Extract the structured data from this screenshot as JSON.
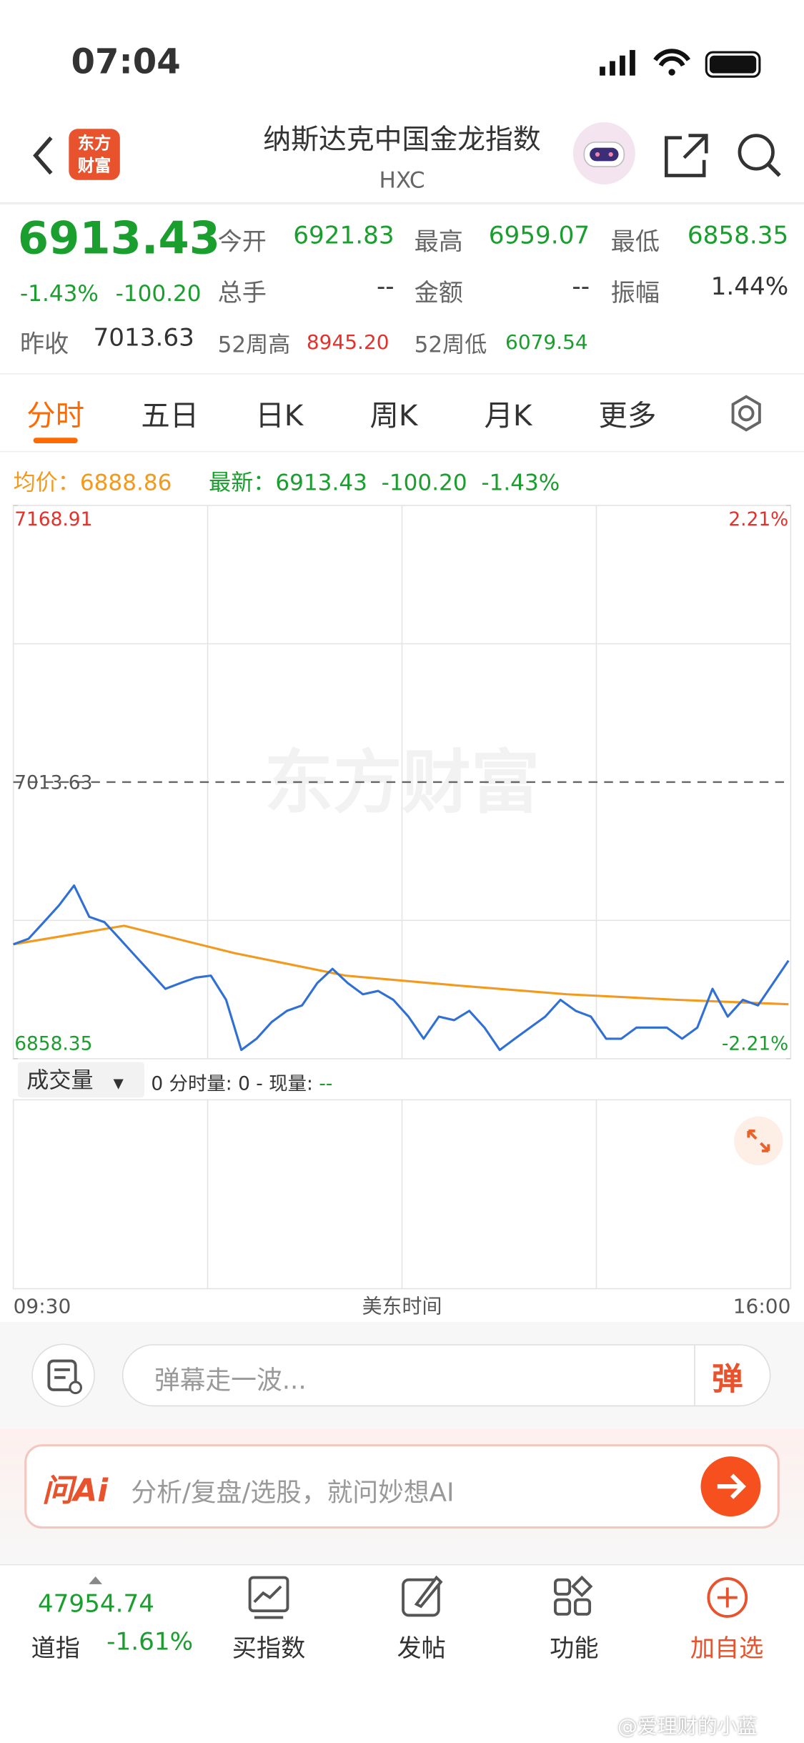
{
  "status": {
    "time": "07:04"
  },
  "header": {
    "logo": [
      "东方",
      "财富"
    ],
    "title": "纳斯达克中国金龙指数",
    "code": "HXC"
  },
  "quote": {
    "price": "6913.43",
    "change_pct": "-1.43%",
    "change": "-100.20",
    "fields": [
      {
        "label": "今开",
        "value": "6921.83"
      },
      {
        "label": "最高",
        "value": "6959.07"
      },
      {
        "label": "最低",
        "value": "6858.35"
      },
      {
        "label": "总手",
        "value": "--"
      },
      {
        "label": "金额",
        "value": "--"
      },
      {
        "label": "振幅",
        "value": "1.44%"
      }
    ],
    "prev_close": {
      "label": "昨收",
      "value": "7013.63"
    },
    "high52": {
      "label": "52周高",
      "value": "8945.20"
    },
    "low52": {
      "label": "52周低",
      "value": "6079.54"
    }
  },
  "tabs": [
    "分时",
    "五日",
    "日K",
    "周K",
    "月K",
    "更多"
  ],
  "info": {
    "avg_label": "均价：",
    "avg": "6888.86",
    "latest_label": "最新：",
    "latest": "6913.43",
    "change": "-100.20",
    "change_pct": "-1.43%"
  },
  "chart_data": {
    "type": "line",
    "watermark": "东方财富",
    "ylim": [
      6858.35,
      7168.91
    ],
    "yticks": [
      6858.35,
      7013.63,
      7168.91
    ],
    "y2lim": [
      -2.21,
      2.21
    ],
    "y2ticks": [
      {
        "value": -2.21,
        "label": "-2.21%"
      },
      {
        "value": 2.21,
        "label": "2.21%"
      }
    ],
    "x_labels": [
      "09:30",
      "美东时间",
      "16:00"
    ],
    "series": [
      {
        "name": "price",
        "color": "#2f6fd6",
        "values": [
          6922.6,
          6925.7,
          6935,
          6944.4,
          6955.6,
          6938,
          6935,
          6925.7,
          6916.3,
          6907,
          6897.6,
          6900.8,
          6903.9,
          6905,
          6891.4,
          6863.3,
          6869.6,
          6879,
          6885.2,
          6888.3,
          6900.8,
          6908.8,
          6900.8,
          6894.5,
          6896.4,
          6891.4,
          6882,
          6869.6,
          6882,
          6880,
          6885.2,
          6875.8,
          6863.3,
          6869.6,
          6875.8,
          6882,
          6891.4,
          6885.2,
          6882,
          6869.6,
          6869.6,
          6875.8,
          6875.8,
          6875.8,
          6869.6,
          6875.8,
          6897.6,
          6882,
          6891.4,
          6888.3,
          6900.8,
          6913.4
        ]
      },
      {
        "name": "avg",
        "color": "#f39a1e",
        "values": [
          6922.6,
          6933,
          6917.6,
          6905,
          6899.5,
          6894.5,
          6891.4,
          6888.9
        ]
      }
    ]
  },
  "volume": {
    "selector": "成交量",
    "text": "0 分时量: 0 - 现量:",
    "current": "--"
  },
  "comment": {
    "placeholder": "弹幕走一波...",
    "button": "弹"
  },
  "ai": {
    "logo": "问Ai",
    "placeholder": "分析/复盘/选股，就问妙想AI"
  },
  "bottom": {
    "index_value": "47954.74",
    "index_name": "道指",
    "index_pct": "-1.61%",
    "nav": [
      "买指数",
      "发帖",
      "功能",
      "加自选"
    ]
  },
  "watermark": "@爱理财的小蓝"
}
